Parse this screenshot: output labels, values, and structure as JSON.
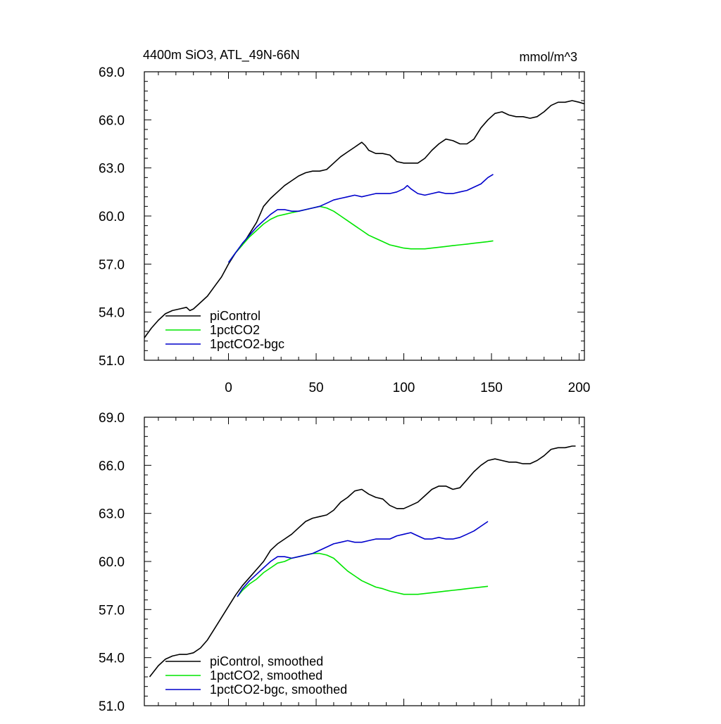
{
  "title_left": "4400m SiO3, ATL_49N-66N",
  "title_right": "mmol/m^3",
  "colors": {
    "piControl": "#000000",
    "1pctCO2": "#00e600",
    "1pctCO2-bgc": "#0000cc"
  },
  "chart_data": [
    {
      "type": "line",
      "panel": "top",
      "xlim": [
        -48,
        203
      ],
      "ylim": [
        51.0,
        69.0
      ],
      "xticks": [
        0,
        50,
        100,
        150,
        200
      ],
      "xtick_labels": [
        "0",
        "50",
        "100",
        "150",
        "200"
      ],
      "yticks": [
        51.0,
        54.0,
        57.0,
        60.0,
        63.0,
        66.0,
        69.0
      ],
      "ytick_labels": [
        "51.0",
        "54.0",
        "57.0",
        "60.0",
        "63.0",
        "66.0",
        "69.0"
      ],
      "grid": false,
      "legend": "bottom-left",
      "series": [
        {
          "name": "piControl",
          "color": "#000000",
          "x": [
            -48,
            -44,
            -40,
            -36,
            -32,
            -28,
            -24,
            -22,
            -20,
            -16,
            -12,
            -8,
            -4,
            0,
            4,
            8,
            12,
            16,
            20,
            24,
            28,
            32,
            36,
            40,
            44,
            48,
            52,
            56,
            60,
            64,
            68,
            72,
            76,
            78,
            80,
            84,
            88,
            92,
            96,
            100,
            104,
            108,
            112,
            116,
            120,
            124,
            128,
            132,
            136,
            140,
            144,
            148,
            152,
            156,
            160,
            164,
            168,
            172,
            176,
            180,
            184,
            188,
            192,
            196,
            200,
            203
          ],
          "y": [
            52.4,
            53.0,
            53.5,
            53.9,
            54.1,
            54.2,
            54.3,
            54.1,
            54.2,
            54.6,
            55.0,
            55.6,
            56.2,
            57.0,
            57.7,
            58.2,
            58.9,
            59.6,
            60.6,
            61.1,
            61.5,
            61.9,
            62.2,
            62.5,
            62.7,
            62.8,
            62.8,
            62.9,
            63.3,
            63.7,
            64.0,
            64.3,
            64.6,
            64.4,
            64.1,
            63.9,
            63.9,
            63.8,
            63.4,
            63.3,
            63.3,
            63.3,
            63.6,
            64.1,
            64.5,
            64.8,
            64.7,
            64.5,
            64.5,
            64.8,
            65.5,
            66.0,
            66.4,
            66.5,
            66.3,
            66.2,
            66.2,
            66.1,
            66.2,
            66.5,
            66.9,
            67.1,
            67.1,
            67.2,
            67.1,
            67.0
          ]
        },
        {
          "name": "1pctCO2",
          "color": "#00e600",
          "x": [
            0,
            4,
            8,
            12,
            16,
            20,
            24,
            28,
            32,
            36,
            40,
            44,
            48,
            52,
            56,
            60,
            64,
            68,
            72,
            76,
            80,
            84,
            88,
            92,
            96,
            100,
            104,
            108,
            112,
            116,
            120,
            124,
            128,
            132,
            136,
            140,
            144,
            148,
            151
          ],
          "y": [
            57.1,
            57.7,
            58.2,
            58.7,
            59.1,
            59.5,
            59.8,
            60.0,
            60.1,
            60.2,
            60.3,
            60.4,
            60.5,
            60.6,
            60.5,
            60.3,
            60.0,
            59.7,
            59.4,
            59.1,
            58.8,
            58.6,
            58.4,
            58.2,
            58.1,
            58.0,
            57.95,
            57.95,
            57.95,
            58.0,
            58.05,
            58.1,
            58.15,
            58.2,
            58.25,
            58.3,
            58.35,
            58.4,
            58.45
          ]
        },
        {
          "name": "1pctCO2-bgc",
          "color": "#0000cc",
          "x": [
            0,
            4,
            8,
            12,
            16,
            20,
            24,
            28,
            32,
            36,
            40,
            44,
            48,
            52,
            56,
            60,
            64,
            68,
            72,
            76,
            80,
            84,
            88,
            92,
            96,
            100,
            102,
            104,
            108,
            112,
            116,
            120,
            124,
            128,
            132,
            136,
            140,
            144,
            148,
            151
          ],
          "y": [
            57.1,
            57.7,
            58.3,
            58.8,
            59.3,
            59.7,
            60.1,
            60.4,
            60.4,
            60.3,
            60.3,
            60.4,
            60.5,
            60.6,
            60.8,
            61.0,
            61.1,
            61.2,
            61.3,
            61.2,
            61.3,
            61.4,
            61.4,
            61.4,
            61.5,
            61.7,
            61.9,
            61.7,
            61.4,
            61.3,
            61.4,
            61.5,
            61.4,
            61.4,
            61.5,
            61.6,
            61.8,
            62.0,
            62.4,
            62.6
          ]
        }
      ],
      "legend_entries": [
        "piControl",
        "1pctCO2",
        "1pctCO2-bgc"
      ]
    },
    {
      "type": "line",
      "panel": "bottom",
      "xlim": [
        -48,
        203
      ],
      "ylim": [
        51.0,
        69.0
      ],
      "xticks": [
        0,
        50,
        100,
        150,
        200
      ],
      "yticks": [
        51.0,
        54.0,
        57.0,
        60.0,
        63.0,
        66.0,
        69.0
      ],
      "ytick_labels": [
        "51.0",
        "54.0",
        "57.0",
        "60.0",
        "63.0",
        "66.0",
        "69.0"
      ],
      "grid": false,
      "legend": "bottom-left",
      "series": [
        {
          "name": "piControl, smoothed",
          "color": "#000000",
          "x": [
            -45,
            -40,
            -36,
            -32,
            -28,
            -24,
            -20,
            -16,
            -12,
            -8,
            -4,
            0,
            4,
            8,
            12,
            16,
            20,
            24,
            28,
            32,
            36,
            40,
            44,
            48,
            52,
            56,
            60,
            64,
            68,
            72,
            76,
            80,
            84,
            88,
            92,
            96,
            100,
            104,
            108,
            112,
            116,
            120,
            124,
            128,
            132,
            136,
            140,
            144,
            148,
            152,
            156,
            160,
            164,
            168,
            172,
            176,
            180,
            184,
            188,
            192,
            196,
            198
          ],
          "y": [
            52.8,
            53.5,
            53.9,
            54.1,
            54.2,
            54.2,
            54.3,
            54.6,
            55.1,
            55.8,
            56.5,
            57.2,
            57.9,
            58.5,
            59.0,
            59.5,
            60.0,
            60.7,
            61.1,
            61.4,
            61.7,
            62.1,
            62.5,
            62.7,
            62.8,
            62.9,
            63.2,
            63.7,
            64.0,
            64.4,
            64.5,
            64.2,
            64.0,
            63.9,
            63.5,
            63.3,
            63.3,
            63.5,
            63.7,
            64.1,
            64.5,
            64.7,
            64.7,
            64.5,
            64.6,
            65.1,
            65.6,
            66.0,
            66.3,
            66.4,
            66.3,
            66.2,
            66.2,
            66.1,
            66.1,
            66.3,
            66.6,
            67.0,
            67.1,
            67.1,
            67.2,
            67.2
          ]
        },
        {
          "name": "1pctCO2, smoothed",
          "color": "#00e600",
          "x": [
            5,
            8,
            12,
            16,
            20,
            24,
            28,
            32,
            36,
            40,
            44,
            48,
            52,
            56,
            60,
            64,
            68,
            72,
            76,
            80,
            84,
            88,
            92,
            96,
            100,
            104,
            108,
            112,
            116,
            120,
            124,
            128,
            132,
            136,
            140,
            144,
            148
          ],
          "y": [
            57.8,
            58.2,
            58.6,
            58.9,
            59.3,
            59.6,
            59.9,
            60.0,
            60.2,
            60.3,
            60.4,
            60.5,
            60.5,
            60.4,
            60.2,
            59.8,
            59.4,
            59.1,
            58.8,
            58.6,
            58.4,
            58.3,
            58.15,
            58.05,
            57.95,
            57.95,
            57.95,
            58.0,
            58.05,
            58.1,
            58.15,
            58.2,
            58.25,
            58.3,
            58.35,
            58.4,
            58.45
          ]
        },
        {
          "name": "1pctCO2-bgc, smoothed",
          "color": "#0000cc",
          "x": [
            5,
            8,
            12,
            16,
            20,
            24,
            28,
            32,
            36,
            40,
            44,
            48,
            52,
            56,
            60,
            64,
            68,
            72,
            76,
            80,
            84,
            88,
            92,
            96,
            100,
            104,
            108,
            112,
            116,
            120,
            124,
            128,
            132,
            136,
            140,
            144,
            148
          ],
          "y": [
            57.8,
            58.3,
            58.8,
            59.2,
            59.6,
            60.0,
            60.3,
            60.3,
            60.2,
            60.3,
            60.4,
            60.5,
            60.7,
            60.9,
            61.1,
            61.2,
            61.3,
            61.2,
            61.2,
            61.3,
            61.4,
            61.4,
            61.4,
            61.6,
            61.7,
            61.8,
            61.6,
            61.4,
            61.4,
            61.5,
            61.4,
            61.4,
            61.5,
            61.7,
            61.9,
            62.2,
            62.5
          ]
        }
      ],
      "legend_entries": [
        "piControl, smoothed",
        "1pctCO2, smoothed",
        "1pctCO2-bgc, smoothed"
      ]
    }
  ]
}
